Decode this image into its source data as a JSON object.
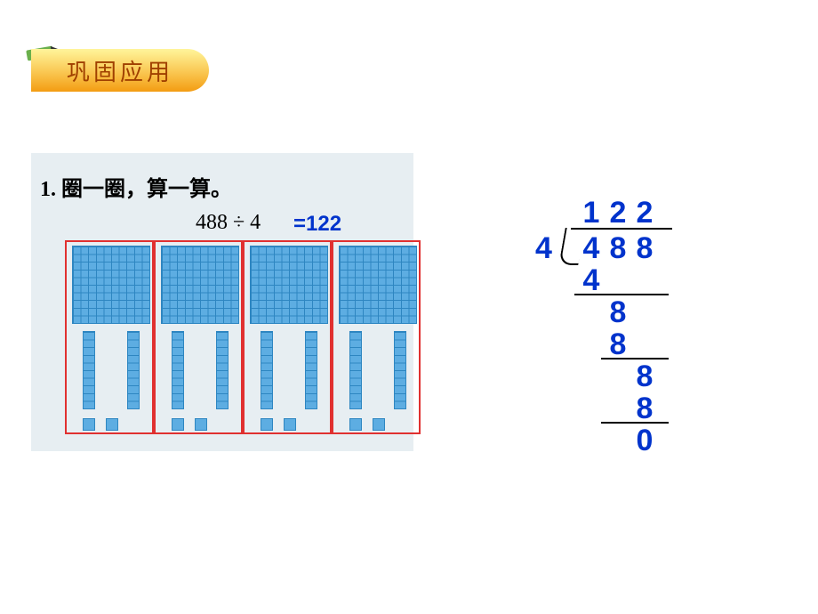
{
  "badge": {
    "text": "巩固应用"
  },
  "problem": {
    "number": "1.",
    "title": "圈一圈，算一算。",
    "equation": "488 ÷ 4",
    "equals": "=",
    "answer": "122"
  },
  "blocks": {
    "group_count": 4,
    "hundreds_per_group": 1,
    "tens_per_group": 2,
    "ones_per_group": 2,
    "group_border_color": "#e03030",
    "block_fill": "#5dade2",
    "block_line": "#2e86c1",
    "content_bg": "#e7eef2"
  },
  "long_division": {
    "divisor": "4",
    "dividend": [
      "4",
      "8",
      "8"
    ],
    "quotient": [
      "1",
      "2",
      "2"
    ],
    "steps": [
      {
        "sub": "4",
        "col": 0,
        "line_from_col": 0,
        "line_to_col": 2
      },
      {
        "bring": "8",
        "col": 1
      },
      {
        "sub": "8",
        "col": 1,
        "line_from_col": 1,
        "line_to_col": 2
      },
      {
        "bring": "8",
        "col": 2
      },
      {
        "sub": "8",
        "col": 2,
        "line_from_col": 1,
        "line_to_col": 2
      },
      {
        "result": "0",
        "col": 2
      }
    ],
    "digit_color": "#0033cc",
    "line_color": "#000000"
  }
}
